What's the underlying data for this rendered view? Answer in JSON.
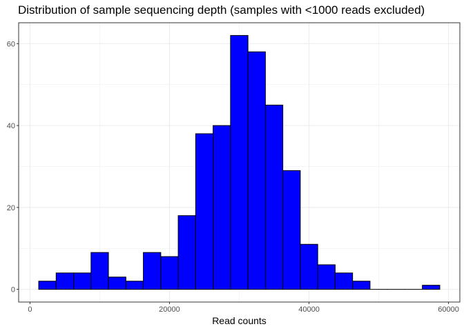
{
  "chart_data": {
    "type": "bar",
    "title": "Distribution of sample sequencing depth (samples with <1000 reads excluded)",
    "xlabel": "Read counts",
    "ylabel": "",
    "bin_width": 2500,
    "bins": [
      {
        "x0": 1250,
        "x1": 3750,
        "count": 2
      },
      {
        "x0": 3750,
        "x1": 6250,
        "count": 4
      },
      {
        "x0": 6250,
        "x1": 8750,
        "count": 4
      },
      {
        "x0": 8750,
        "x1": 11250,
        "count": 9
      },
      {
        "x0": 11250,
        "x1": 13750,
        "count": 3
      },
      {
        "x0": 13750,
        "x1": 16250,
        "count": 2
      },
      {
        "x0": 16250,
        "x1": 18750,
        "count": 9
      },
      {
        "x0": 18750,
        "x1": 21250,
        "count": 8
      },
      {
        "x0": 21250,
        "x1": 23750,
        "count": 18
      },
      {
        "x0": 23750,
        "x1": 26250,
        "count": 38
      },
      {
        "x0": 26250,
        "x1": 28750,
        "count": 40
      },
      {
        "x0": 28750,
        "x1": 31250,
        "count": 62
      },
      {
        "x0": 31250,
        "x1": 33750,
        "count": 58
      },
      {
        "x0": 33750,
        "x1": 36250,
        "count": 45
      },
      {
        "x0": 36250,
        "x1": 38750,
        "count": 29
      },
      {
        "x0": 38750,
        "x1": 41250,
        "count": 11
      },
      {
        "x0": 41250,
        "x1": 43750,
        "count": 6
      },
      {
        "x0": 43750,
        "x1": 46250,
        "count": 4
      },
      {
        "x0": 46250,
        "x1": 48750,
        "count": 2
      },
      {
        "x0": 48750,
        "x1": 51250,
        "count": 0
      },
      {
        "x0": 51250,
        "x1": 53750,
        "count": 0
      },
      {
        "x0": 53750,
        "x1": 56250,
        "count": 0
      },
      {
        "x0": 56250,
        "x1": 58750,
        "count": 1
      }
    ],
    "xlim": [
      -1625,
      61625
    ],
    "ylim": [
      -3.1,
      65.1
    ],
    "x_ticks": [
      0,
      20000,
      40000,
      60000
    ],
    "x_tick_labels": [
      "0",
      "20000",
      "40000",
      "60000"
    ],
    "y_ticks": [
      0,
      20,
      40,
      60
    ],
    "y_tick_labels": [
      "0",
      "20",
      "40",
      "60"
    ],
    "grid": true,
    "bar_fill": "#0000ff",
    "bar_stroke": "#000000",
    "grid_color": "#ebebeb",
    "panel_border": "#333333",
    "tick_label_color": "#4d4d4d"
  }
}
